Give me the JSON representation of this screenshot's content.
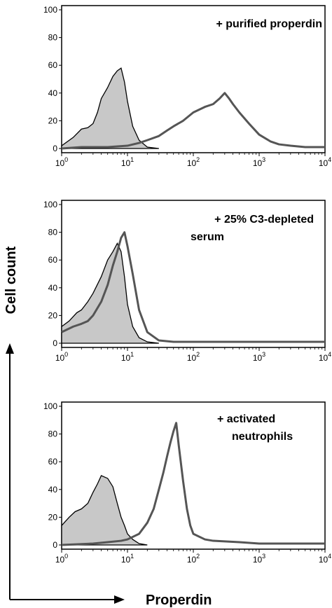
{
  "figure": {
    "ylabel": "Cell count",
    "xlabel": "Properdin"
  },
  "chart_data": [
    {
      "type": "area",
      "annotation": [
        "+ purified properdin"
      ],
      "x_scale": "log",
      "xlim": [
        1,
        10000
      ],
      "ylim": [
        0,
        100
      ],
      "yticks": [
        0,
        20,
        40,
        60,
        80,
        100
      ],
      "xtick_labels": [
        {
          "base": "10",
          "exp": "0",
          "value": 1
        },
        {
          "base": "10",
          "exp": "1",
          "value": 10
        },
        {
          "base": "10",
          "exp": "2",
          "value": 100
        },
        {
          "base": "10",
          "exp": "3",
          "value": 1000
        },
        {
          "base": "10",
          "exp": "4",
          "value": 10000
        }
      ],
      "series": [
        {
          "style": "filled-control",
          "color": "#c8c8c8",
          "x": [
            1,
            1.5,
            2,
            2.5,
            3,
            3.5,
            4,
            5,
            6,
            7,
            8,
            9,
            10,
            12,
            15,
            20,
            30
          ],
          "y": [
            2,
            8,
            14,
            15,
            18,
            26,
            36,
            44,
            52,
            56,
            58,
            48,
            34,
            16,
            6,
            1,
            0
          ]
        },
        {
          "style": "outline",
          "color": "#555555",
          "x": [
            1,
            2,
            5,
            10,
            15,
            20,
            30,
            40,
            50,
            70,
            100,
            150,
            200,
            250,
            300,
            350,
            400,
            500,
            700,
            1000,
            1500,
            2000,
            3000,
            5000,
            10000
          ],
          "y": [
            0,
            1,
            1,
            2,
            4,
            6,
            9,
            13,
            16,
            20,
            26,
            30,
            32,
            36,
            40,
            36,
            32,
            26,
            18,
            10,
            5,
            3,
            2,
            1,
            1
          ]
        }
      ]
    },
    {
      "type": "area",
      "annotation": [
        "+ 25% C3-depleted",
        "serum"
      ],
      "x_scale": "log",
      "xlim": [
        1,
        10000
      ],
      "ylim": [
        0,
        100
      ],
      "yticks": [
        0,
        20,
        40,
        60,
        80,
        100
      ],
      "xtick_labels": [
        {
          "base": "10",
          "exp": "0",
          "value": 1
        },
        {
          "base": "10",
          "exp": "1",
          "value": 10
        },
        {
          "base": "10",
          "exp": "2",
          "value": 100
        },
        {
          "base": "10",
          "exp": "3",
          "value": 1000
        },
        {
          "base": "10",
          "exp": "4",
          "value": 10000
        }
      ],
      "series": [
        {
          "style": "filled-control",
          "color": "#c8c8c8",
          "x": [
            1,
            1.3,
            1.7,
            2,
            2.5,
            3,
            4,
            5,
            6,
            7,
            8,
            9,
            10,
            12,
            15,
            20,
            30
          ],
          "y": [
            12,
            16,
            22,
            24,
            30,
            36,
            48,
            60,
            66,
            72,
            66,
            48,
            28,
            12,
            4,
            1,
            0
          ]
        },
        {
          "style": "outline",
          "color": "#555555",
          "x": [
            1,
            1.5,
            2,
            2.5,
            3,
            4,
            5,
            6,
            7,
            8,
            9,
            10,
            12,
            15,
            20,
            30,
            50,
            100,
            1000,
            10000
          ],
          "y": [
            8,
            12,
            14,
            16,
            20,
            30,
            42,
            56,
            66,
            76,
            80,
            70,
            50,
            24,
            8,
            2,
            1,
            1,
            1,
            1
          ]
        }
      ]
    },
    {
      "type": "area",
      "annotation": [
        "+ activated",
        "neutrophils"
      ],
      "x_scale": "log",
      "xlim": [
        1,
        10000
      ],
      "ylim": [
        0,
        100
      ],
      "yticks": [
        0,
        20,
        40,
        60,
        80,
        100
      ],
      "xtick_labels": [
        {
          "base": "10",
          "exp": "0",
          "value": 1
        },
        {
          "base": "10",
          "exp": "1",
          "value": 10
        },
        {
          "base": "10",
          "exp": "2",
          "value": 100
        },
        {
          "base": "10",
          "exp": "3",
          "value": 1000
        },
        {
          "base": "10",
          "exp": "4",
          "value": 10000
        }
      ],
      "series": [
        {
          "style": "filled-control",
          "color": "#c8c8c8",
          "x": [
            1,
            1.3,
            1.6,
            2,
            2.5,
            3,
            3.5,
            4,
            5,
            6,
            7,
            8,
            9,
            10,
            12,
            15,
            20
          ],
          "y": [
            14,
            20,
            24,
            26,
            30,
            38,
            44,
            50,
            48,
            42,
            30,
            20,
            14,
            8,
            4,
            1,
            0
          ]
        },
        {
          "style": "outline",
          "color": "#555555",
          "x": [
            1,
            3,
            5,
            8,
            10,
            15,
            20,
            25,
            30,
            35,
            40,
            45,
            50,
            55,
            60,
            70,
            80,
            90,
            100,
            150,
            200,
            500,
            1000,
            3000,
            10000
          ],
          "y": [
            0,
            1,
            2,
            3,
            4,
            8,
            16,
            26,
            40,
            52,
            64,
            74,
            82,
            88,
            72,
            46,
            26,
            14,
            8,
            4,
            3,
            2,
            1,
            1,
            1
          ]
        }
      ]
    }
  ]
}
